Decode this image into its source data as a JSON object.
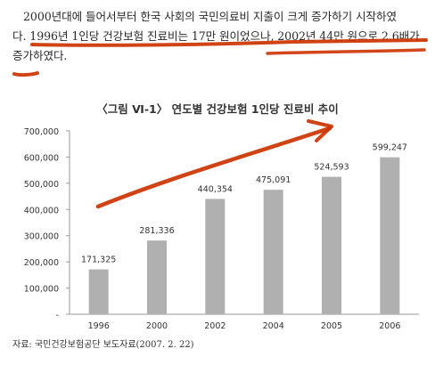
{
  "paragraph": {
    "line1": "2000년대에 들어서부터 한국 사회의 국민의료비 지출이 크게 증가하기 시작하였",
    "line2": "다. 1996년 1인당 건강보험 진료비는 17만 원이었으나, 2002년 44만 원으로 2.6배가",
    "line3": "증가하였다."
  },
  "figure_caption": "〈그림 Ⅵ-1〉 연도별 건강보험 1인당 진료비 추이",
  "source": "자료: 국민건강보험공단 보도자료(2007. 2. 22)",
  "colors": {
    "bar": "#b0b0b0",
    "annotation": "#cc3300",
    "axis": "#9a9a9a",
    "text": "#333333"
  },
  "chart_data": {
    "type": "bar",
    "title": "〈그림 Ⅵ-1〉 연도별 건강보험 1인당 진료비 추이",
    "categories": [
      "1996",
      "2000",
      "2002",
      "2004",
      "2005",
      "2006"
    ],
    "values": [
      171325,
      281336,
      440354,
      475091,
      524593,
      599247
    ],
    "value_labels": [
      "171,325",
      "281,336",
      "440,354",
      "475,091",
      "524,593",
      "599,247"
    ],
    "y_ticks": [
      0,
      100000,
      200000,
      300000,
      400000,
      500000,
      600000,
      700000
    ],
    "y_tick_labels": [
      "-",
      "100,000",
      "200,000",
      "300,000",
      "400,000",
      "500,000",
      "600,000",
      "700,000"
    ],
    "ylim": [
      0,
      700000
    ],
    "xlabel": "",
    "ylabel": "",
    "grid": false,
    "legend": "none"
  }
}
